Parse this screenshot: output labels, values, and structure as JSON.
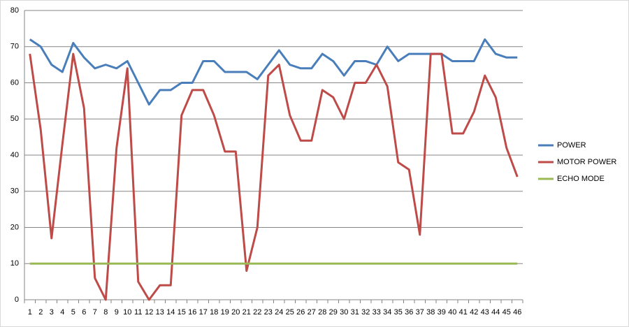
{
  "chart_data": {
    "type": "line",
    "categories": [
      "1",
      "2",
      "3",
      "4",
      "5",
      "6",
      "7",
      "8",
      "9",
      "10",
      "11",
      "12",
      "13",
      "14",
      "15",
      "16",
      "17",
      "18",
      "19",
      "20",
      "21",
      "22",
      "23",
      "24",
      "25",
      "26",
      "27",
      "28",
      "29",
      "30",
      "31",
      "32",
      "33",
      "34",
      "35",
      "36",
      "37",
      "38",
      "39",
      "40",
      "41",
      "42",
      "43",
      "44",
      "45",
      "46"
    ],
    "series": [
      {
        "name": "POWER",
        "color": "#4a7ebb",
        "values": [
          72,
          70,
          65,
          63,
          71,
          67,
          64,
          65,
          64,
          66,
          60,
          54,
          58,
          58,
          60,
          60,
          66,
          66,
          63,
          63,
          63,
          61,
          65,
          69,
          65,
          64,
          64,
          68,
          66,
          62,
          66,
          66,
          65,
          70,
          66,
          68,
          68,
          68,
          68,
          66,
          66,
          66,
          72,
          68,
          67,
          67
        ]
      },
      {
        "name": "MOTOR POWER",
        "color": "#be4b48",
        "values": [
          68,
          47,
          17,
          43,
          68,
          53,
          6,
          0,
          42,
          64,
          5,
          0,
          4,
          4,
          51,
          58,
          58,
          51,
          41,
          41,
          8,
          20,
          62,
          65,
          51,
          44,
          44,
          58,
          56,
          50,
          60,
          60,
          65,
          59,
          38,
          36,
          18,
          68,
          68,
          46,
          46,
          52,
          62,
          56,
          42,
          34
        ]
      },
      {
        "name": "ECHO MODE",
        "color": "#98b954",
        "values": [
          10,
          10,
          10,
          10,
          10,
          10,
          10,
          10,
          10,
          10,
          10,
          10,
          10,
          10,
          10,
          10,
          10,
          10,
          10,
          10,
          10,
          10,
          10,
          10,
          10,
          10,
          10,
          10,
          10,
          10,
          10,
          10,
          10,
          10,
          10,
          10,
          10,
          10,
          10,
          10,
          10,
          10,
          10,
          10,
          10,
          10
        ]
      }
    ],
    "ylim": [
      0,
      80
    ],
    "yticks": [
      0,
      10,
      20,
      30,
      40,
      50,
      60,
      70,
      80
    ],
    "grid": true,
    "legend": "right"
  }
}
